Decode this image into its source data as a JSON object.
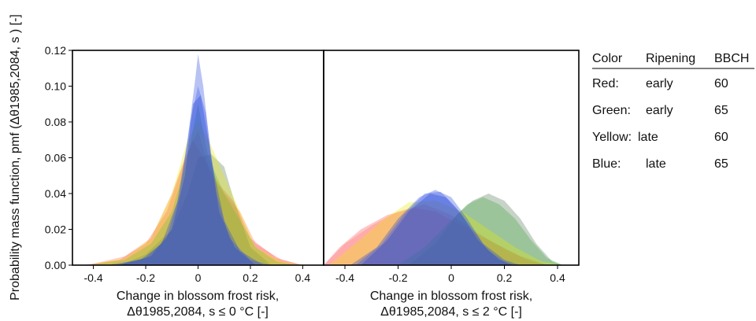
{
  "chart_data": [
    {
      "type": "area",
      "panel": "left",
      "ylabel": "Probability mass function, pmf (Δθ1985,2084, s ) [-]",
      "xlabel_line1": "Change in blossom frost risk,",
      "xlabel_line2": "Δθ1985,2084, s ≤ 0 °C [-]",
      "xlim": [
        -0.48,
        0.48
      ],
      "ylim": [
        0,
        0.12
      ],
      "xticks": [
        -0.4,
        -0.2,
        0,
        0.2,
        0.4
      ],
      "xtick_labels": [
        "-0.4",
        "-0.2",
        "0",
        "0.2",
        "0.4"
      ],
      "yticks": [
        0,
        0.02,
        0.04,
        0.06,
        0.08,
        0.1,
        0.12
      ],
      "ytick_labels": [
        "0.00",
        "0.02",
        "0.04",
        "0.06",
        "0.08",
        "0.10",
        "0.12"
      ],
      "series": [
        {
          "color": "#ff4a4a",
          "values": [
            [
              -0.44,
              0
            ],
            [
              -0.3,
              0.003
            ],
            [
              -0.2,
              0.012
            ],
            [
              -0.12,
              0.03
            ],
            [
              -0.06,
              0.055
            ],
            [
              -0.02,
              0.07
            ],
            [
              0.02,
              0.06
            ],
            [
              0.08,
              0.045
            ],
            [
              0.14,
              0.035
            ],
            [
              0.2,
              0.015
            ],
            [
              0.3,
              0.004
            ],
            [
              0.4,
              0
            ]
          ]
        },
        {
          "color": "#ff6b6b",
          "values": [
            [
              -0.42,
              0
            ],
            [
              -0.28,
              0.005
            ],
            [
              -0.18,
              0.015
            ],
            [
              -0.1,
              0.04
            ],
            [
              -0.05,
              0.06
            ],
            [
              0.0,
              0.075
            ],
            [
              0.05,
              0.05
            ],
            [
              0.1,
              0.04
            ],
            [
              0.16,
              0.03
            ],
            [
              0.22,
              0.012
            ],
            [
              0.32,
              0.003
            ],
            [
              0.4,
              0
            ]
          ]
        },
        {
          "color": "#33bb33",
          "values": [
            [
              -0.42,
              0
            ],
            [
              -0.28,
              0.003
            ],
            [
              -0.18,
              0.012
            ],
            [
              -0.1,
              0.03
            ],
            [
              -0.04,
              0.06
            ],
            [
              0.0,
              0.09
            ],
            [
              0.04,
              0.06
            ],
            [
              0.1,
              0.04
            ],
            [
              0.16,
              0.025
            ],
            [
              0.22,
              0.01
            ],
            [
              0.3,
              0.002
            ],
            [
              0.38,
              0
            ]
          ]
        },
        {
          "color": "#557755",
          "values": [
            [
              -0.3,
              0
            ],
            [
              -0.2,
              0.006
            ],
            [
              -0.1,
              0.02
            ],
            [
              -0.04,
              0.04
            ],
            [
              0.0,
              0.06
            ],
            [
              0.05,
              0.062
            ],
            [
              0.1,
              0.055
            ],
            [
              0.14,
              0.035
            ],
            [
              0.2,
              0.01
            ],
            [
              0.28,
              0
            ]
          ]
        },
        {
          "color": "#e8e800",
          "values": [
            [
              -0.42,
              0
            ],
            [
              -0.28,
              0.004
            ],
            [
              -0.18,
              0.015
            ],
            [
              -0.1,
              0.04
            ],
            [
              -0.04,
              0.07
            ],
            [
              0.0,
              0.08
            ],
            [
              0.04,
              0.07
            ],
            [
              0.1,
              0.05
            ],
            [
              0.16,
              0.03
            ],
            [
              0.22,
              0.01
            ],
            [
              0.32,
              0.002
            ],
            [
              0.4,
              0
            ]
          ]
        },
        {
          "color": "#2244dd",
          "values": [
            [
              -0.35,
              0
            ],
            [
              -0.22,
              0.003
            ],
            [
              -0.14,
              0.012
            ],
            [
              -0.08,
              0.035
            ],
            [
              -0.04,
              0.07
            ],
            [
              -0.01,
              0.105
            ],
            [
              0.0,
              0.118
            ],
            [
              0.02,
              0.1
            ],
            [
              0.05,
              0.06
            ],
            [
              0.1,
              0.025
            ],
            [
              0.16,
              0.008
            ],
            [
              0.25,
              0
            ]
          ]
        },
        {
          "color": "#3355ee",
          "values": [
            [
              -0.32,
              0
            ],
            [
              -0.2,
              0.004
            ],
            [
              -0.12,
              0.015
            ],
            [
              -0.07,
              0.04
            ],
            [
              -0.03,
              0.08
            ],
            [
              0.0,
              0.1
            ],
            [
              0.03,
              0.085
            ],
            [
              0.07,
              0.04
            ],
            [
              0.12,
              0.015
            ],
            [
              0.2,
              0.003
            ],
            [
              0.28,
              0
            ]
          ]
        },
        {
          "color": "#1f3fcc",
          "values": [
            [
              -0.3,
              0
            ],
            [
              -0.18,
              0.005
            ],
            [
              -0.1,
              0.02
            ],
            [
              -0.05,
              0.05
            ],
            [
              -0.02,
              0.09
            ],
            [
              0.01,
              0.095
            ],
            [
              0.04,
              0.07
            ],
            [
              0.08,
              0.03
            ],
            [
              0.14,
              0.01
            ],
            [
              0.22,
              0
            ]
          ]
        }
      ]
    },
    {
      "type": "area",
      "panel": "right",
      "xlabel_line1": "Change in blossom frost risk,",
      "xlabel_line2": "Δθ1985,2084, s ≤ 2 °C [-]",
      "xlim": [
        -0.48,
        0.48
      ],
      "ylim": [
        0,
        0.12
      ],
      "xticks": [
        -0.4,
        -0.2,
        0,
        0.2,
        0.4
      ],
      "xtick_labels": [
        "-0.4",
        "-0.2",
        "0",
        "0.2",
        "0.4"
      ],
      "series": [
        {
          "color": "#ff4a4a",
          "values": [
            [
              -0.48,
              0
            ],
            [
              -0.42,
              0.01
            ],
            [
              -0.34,
              0.02
            ],
            [
              -0.24,
              0.028
            ],
            [
              -0.14,
              0.032
            ],
            [
              -0.06,
              0.03
            ],
            [
              0.04,
              0.022
            ],
            [
              0.14,
              0.014
            ],
            [
              0.26,
              0.005
            ],
            [
              0.36,
              0
            ]
          ]
        },
        {
          "color": "#ff7777",
          "values": [
            [
              -0.48,
              0
            ],
            [
              -0.4,
              0.012
            ],
            [
              -0.3,
              0.022
            ],
            [
              -0.2,
              0.03
            ],
            [
              -0.1,
              0.034
            ],
            [
              0.0,
              0.028
            ],
            [
              0.1,
              0.018
            ],
            [
              0.2,
              0.009
            ],
            [
              0.3,
              0.002
            ],
            [
              0.38,
              0
            ]
          ]
        },
        {
          "color": "#33bb33",
          "values": [
            [
              -0.2,
              0
            ],
            [
              -0.1,
              0.01
            ],
            [
              0.0,
              0.025
            ],
            [
              0.06,
              0.034
            ],
            [
              0.12,
              0.038
            ],
            [
              0.18,
              0.034
            ],
            [
              0.24,
              0.026
            ],
            [
              0.3,
              0.014
            ],
            [
              0.36,
              0.004
            ],
            [
              0.42,
              0
            ]
          ]
        },
        {
          "color": "#557755",
          "values": [
            [
              -0.16,
              0
            ],
            [
              -0.06,
              0.012
            ],
            [
              0.02,
              0.028
            ],
            [
              0.08,
              0.036
            ],
            [
              0.14,
              0.04
            ],
            [
              0.2,
              0.036
            ],
            [
              0.26,
              0.026
            ],
            [
              0.32,
              0.012
            ],
            [
              0.38,
              0.002
            ],
            [
              0.42,
              0
            ]
          ]
        },
        {
          "color": "#e8e800",
          "values": [
            [
              -0.46,
              0
            ],
            [
              -0.36,
              0.012
            ],
            [
              -0.26,
              0.025
            ],
            [
              -0.16,
              0.035
            ],
            [
              -0.06,
              0.036
            ],
            [
              0.04,
              0.03
            ],
            [
              0.14,
              0.02
            ],
            [
              0.24,
              0.01
            ],
            [
              0.34,
              0.002
            ],
            [
              0.42,
              0
            ]
          ]
        },
        {
          "color": "#2244dd",
          "values": [
            [
              -0.38,
              0
            ],
            [
              -0.28,
              0.01
            ],
            [
              -0.2,
              0.026
            ],
            [
              -0.12,
              0.038
            ],
            [
              -0.06,
              0.042
            ],
            [
              0.0,
              0.038
            ],
            [
              0.06,
              0.026
            ],
            [
              0.12,
              0.012
            ],
            [
              0.2,
              0.003
            ],
            [
              0.26,
              0
            ]
          ]
        },
        {
          "color": "#3355ee",
          "values": [
            [
              -0.36,
              0
            ],
            [
              -0.26,
              0.012
            ],
            [
              -0.18,
              0.028
            ],
            [
              -0.1,
              0.04
            ],
            [
              -0.04,
              0.041
            ],
            [
              0.02,
              0.032
            ],
            [
              0.08,
              0.02
            ],
            [
              0.14,
              0.008
            ],
            [
              0.22,
              0
            ]
          ]
        },
        {
          "color": "#1f3fcc",
          "values": [
            [
              -0.34,
              0
            ],
            [
              -0.24,
              0.014
            ],
            [
              -0.16,
              0.03
            ],
            [
              -0.08,
              0.04
            ],
            [
              -0.02,
              0.038
            ],
            [
              0.04,
              0.028
            ],
            [
              0.1,
              0.014
            ],
            [
              0.18,
              0.003
            ],
            [
              0.24,
              0
            ]
          ]
        }
      ]
    }
  ],
  "legend": {
    "headers": [
      "Color",
      "Ripening",
      "BBCH"
    ],
    "rows": [
      [
        "Red:",
        "early",
        "60"
      ],
      [
        "Green:",
        "early",
        "65"
      ],
      [
        "Yellow:",
        "late",
        "60"
      ],
      [
        "Blue:",
        "late",
        "65"
      ]
    ]
  }
}
